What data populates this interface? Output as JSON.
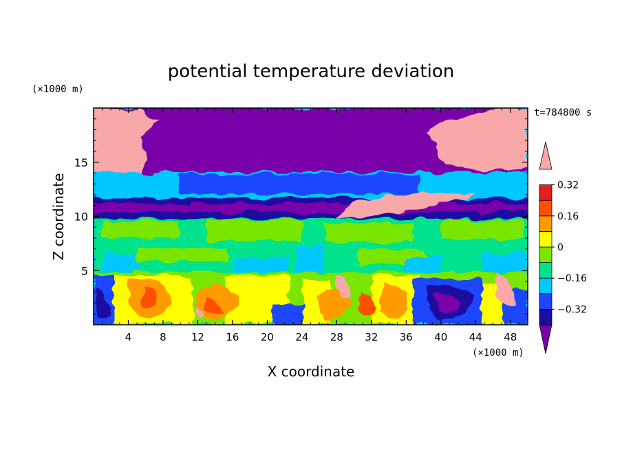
{
  "chart_data": {
    "type": "heatmap",
    "title": "potential temperature deviation",
    "xlabel": "X coordinate",
    "ylabel": "Z coordinate",
    "x_unit": "(×1000 m)",
    "y_unit": "(×1000 m)",
    "time_label": "t=784800 s",
    "xlim": [
      0,
      50
    ],
    "ylim": [
      0,
      20
    ],
    "x_ticks": [
      4,
      8,
      12,
      16,
      20,
      24,
      28,
      32,
      36,
      40,
      44,
      48
    ],
    "y_ticks": [
      5,
      10,
      15
    ],
    "colorbar": {
      "labels": [
        "0.32",
        "0.16",
        "0",
        "−0.16",
        "−0.32"
      ],
      "label_values": [
        0.32,
        0.16,
        0,
        -0.16,
        -0.32
      ],
      "bounds": [
        -0.4,
        -0.32,
        -0.24,
        -0.16,
        -0.08,
        0,
        0.08,
        0.16,
        0.24,
        0.32,
        0.4
      ],
      "colors": [
        "#7a00aa",
        "#1a0fa0",
        "#1e46ff",
        "#00c8ff",
        "#00e38c",
        "#7ae600",
        "#ffff00",
        "#ff9b00",
        "#ff5000",
        "#e61e1e",
        "#f8a8a8"
      ]
    },
    "regions": [
      {
        "level": "-0.40",
        "color": "#7a00aa",
        "x": [
          14,
          40
        ],
        "z": [
          14,
          20
        ]
      },
      {
        "level": "0.40",
        "color": "#f8a8a8",
        "x": [
          0,
          7
        ],
        "z": [
          14,
          20
        ]
      },
      {
        "level": "0.40",
        "color": "#f8a8a8",
        "x": [
          40,
          50
        ],
        "z": [
          14,
          20
        ]
      },
      {
        "level": "-0.24",
        "color": "#1e46ff",
        "x": [
          0,
          50
        ],
        "z": [
          12,
          14
        ]
      },
      {
        "level": "-0.32",
        "color": "#1a0fa0",
        "x": [
          0,
          50
        ],
        "z": [
          10,
          12
        ]
      },
      {
        "level": "0.40",
        "color": "#f8a8a8",
        "x": [
          29,
          42
        ],
        "z": [
          9.7,
          12
        ]
      },
      {
        "level": "0.00",
        "color": "#7ae600",
        "x": [
          0,
          50
        ],
        "z": [
          5,
          9.7
        ]
      },
      {
        "level": "mixed",
        "color": "#ff9b00",
        "x": [
          0,
          50
        ],
        "z": [
          0,
          5
        ]
      }
    ]
  }
}
